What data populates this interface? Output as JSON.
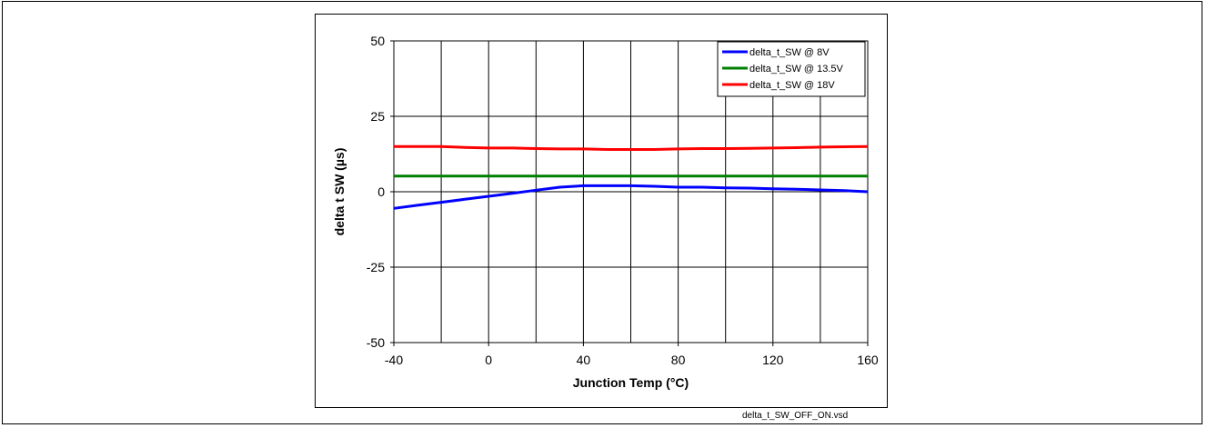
{
  "file_label": "delta_t_SW_OFF_ON.vsd",
  "chart_data": {
    "type": "line",
    "title": "",
    "xlabel": "Junction Temp (°C)",
    "ylabel": "delta t SW (µs)",
    "xlim": [
      -40,
      160
    ],
    "ylim": [
      -50,
      50
    ],
    "xticks": [
      -40,
      0,
      40,
      80,
      120,
      160
    ],
    "yticks": [
      -50,
      -25,
      0,
      25,
      50
    ],
    "x_minor_grid_step": 20,
    "grid": true,
    "legend_position": "top-right",
    "series": [
      {
        "name": "delta_t_SW @ 8V",
        "color": "#0000ff",
        "x": [
          -40,
          -30,
          -20,
          -10,
          0,
          10,
          20,
          30,
          40,
          50,
          60,
          70,
          80,
          90,
          100,
          110,
          120,
          130,
          140,
          150,
          160
        ],
        "y": [
          -5.5,
          -4.5,
          -3.5,
          -2.5,
          -1.5,
          -0.5,
          0.5,
          1.5,
          2.0,
          2.0,
          2.0,
          1.8,
          1.5,
          1.5,
          1.3,
          1.2,
          1.0,
          0.8,
          0.6,
          0.4,
          0.0
        ]
      },
      {
        "name": "delta_t_SW @ 13.5V",
        "color": "#008000",
        "x": [
          -40,
          0,
          40,
          80,
          120,
          160
        ],
        "y": [
          5.2,
          5.2,
          5.2,
          5.2,
          5.2,
          5.2
        ]
      },
      {
        "name": "delta_t_SW @ 18V",
        "color": "#ff0000",
        "x": [
          -40,
          -20,
          -10,
          0,
          10,
          20,
          30,
          40,
          50,
          60,
          70,
          80,
          90,
          100,
          110,
          120,
          130,
          140,
          150,
          160
        ],
        "y": [
          15.0,
          15.0,
          14.7,
          14.5,
          14.5,
          14.3,
          14.2,
          14.2,
          14.0,
          14.0,
          14.0,
          14.2,
          14.3,
          14.3,
          14.4,
          14.5,
          14.6,
          14.8,
          14.9,
          15.0
        ]
      }
    ]
  }
}
